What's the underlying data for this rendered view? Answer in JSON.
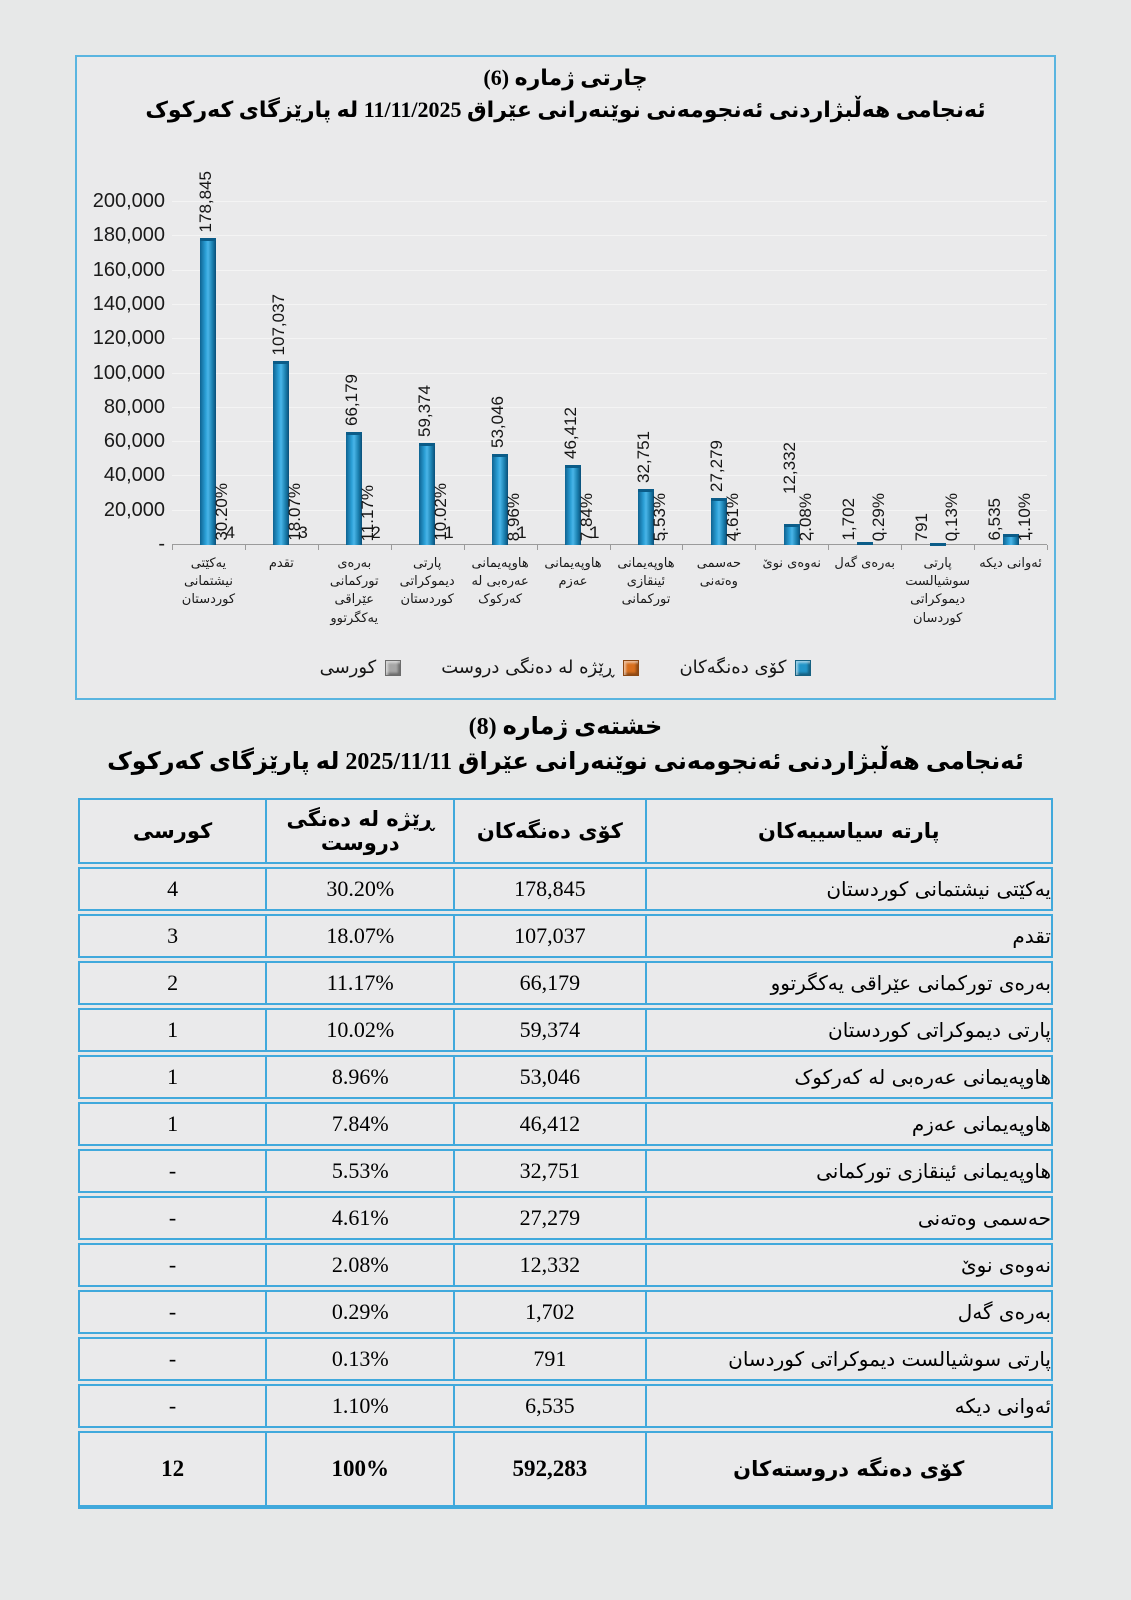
{
  "chart_data": {
    "type": "bar",
    "title": "چارتی ژماره (6)",
    "subtitle": "ئەنجامی هەڵبژاردنی ئەنجومەنی نوێنەرانی عێراق  11/11/2025 له پارێزگای کەرکوک",
    "categories": [
      "یەکێتی نیشتمانی کوردستان",
      "تقدم",
      "بەرەی تورکمانی عێراقی یەکگرتوو",
      "پارتی دیموکراتی کوردستان",
      "هاوپەیمانی عەرەبی له کەرکوک",
      "هاوپەیمانی عەزم",
      "هاوپەیمانی ئینقازی تورکمانی",
      "حەسمی وەتەنی",
      "نەوەی نوێ",
      "بەرەی گەل",
      "پارتی سوشیالست دیموکراتی کوردسان",
      "ئەوانی دیکه"
    ],
    "series": [
      {
        "name": "کۆی دەنگەکان",
        "color": "#2295c8",
        "values": [
          178845,
          107037,
          66179,
          59374,
          53046,
          46412,
          32751,
          27279,
          12332,
          1702,
          791,
          6535
        ],
        "labels": [
          "178,845",
          "107,037",
          "66,179",
          "59,374",
          "53,046",
          "46,412",
          "32,751",
          "27,279",
          "12,332",
          "1,702",
          "791",
          "6,535"
        ]
      },
      {
        "name": "ڕێژه له دەنگی دروست",
        "color": "#d86f1e",
        "values": [
          30.2,
          18.07,
          11.17,
          10.02,
          8.96,
          7.84,
          5.53,
          4.61,
          2.08,
          0.29,
          0.13,
          1.1
        ],
        "labels": [
          "30.20%",
          "18.07%",
          "11.17%",
          "10.02%",
          "8.96%",
          "7.84%",
          "5.53%",
          "4.61%",
          "2.08%",
          "0.29%",
          "0.13%",
          "1.10%"
        ]
      },
      {
        "name": "کورسی",
        "color": "#a6a6a6",
        "values": [
          4,
          3,
          2,
          1,
          1,
          1,
          0,
          0,
          0,
          0,
          0,
          0
        ],
        "labels": [
          "4",
          "3",
          "2",
          "1",
          "1",
          "1",
          "-",
          "-",
          "-",
          "-",
          "-",
          "-"
        ]
      }
    ],
    "ylim": [
      0,
      200000
    ],
    "y_tick_labels": [
      "200,000",
      "180,000",
      "160,000",
      "140,000",
      "120,000",
      "100,000",
      "80,000",
      "60,000",
      "40,000",
      "20,000",
      "-"
    ],
    "grid": true,
    "legend_position": "bottom"
  },
  "table": {
    "title": "خشتەی ژماره (8)",
    "subtitle": "ئەنجامی هەڵبژاردنی ئەنجومەنی نوێنەرانی عێراق  2025/11/11 له پارێزگای کەرکوک",
    "headers": [
      "پارته سیاسییەکان",
      "کۆی دەنگەکان",
      "ڕێژه له دەنگی دروست",
      "کورسی"
    ],
    "rows": [
      [
        "یەکێتی نیشتمانی کوردستان",
        "178,845",
        "30.20%",
        "4"
      ],
      [
        "تقدم",
        "107,037",
        "18.07%",
        "3"
      ],
      [
        "بەرەی تورکمانی عێراقی یەکگرتوو",
        "66,179",
        "11.17%",
        "2"
      ],
      [
        "پارتی دیموکراتی کوردستان",
        "59,374",
        "10.02%",
        "1"
      ],
      [
        "هاوپەیمانی عەرەبی له کەرکوک",
        "53,046",
        "8.96%",
        "1"
      ],
      [
        "هاوپەیمانی عەزم",
        "46,412",
        "7.84%",
        "1"
      ],
      [
        "هاوپەیمانی ئینقازی تورکمانی",
        "32,751",
        "5.53%",
        "-"
      ],
      [
        "حەسمی وەتەنی",
        "27,279",
        "4.61%",
        "-"
      ],
      [
        "نەوەی نوێ",
        "12,332",
        "2.08%",
        "-"
      ],
      [
        "بەرەی گەل",
        "1,702",
        "0.29%",
        "-"
      ],
      [
        "پارتی سوشیالست دیموکراتی کوردسان",
        "791",
        "0.13%",
        "-"
      ],
      [
        "ئەوانی دیکه",
        "6,535",
        "1.10%",
        "-"
      ]
    ],
    "total": [
      "کۆی دەنگه دروستەکان",
      "592,283",
      "100%",
      "12"
    ]
  }
}
